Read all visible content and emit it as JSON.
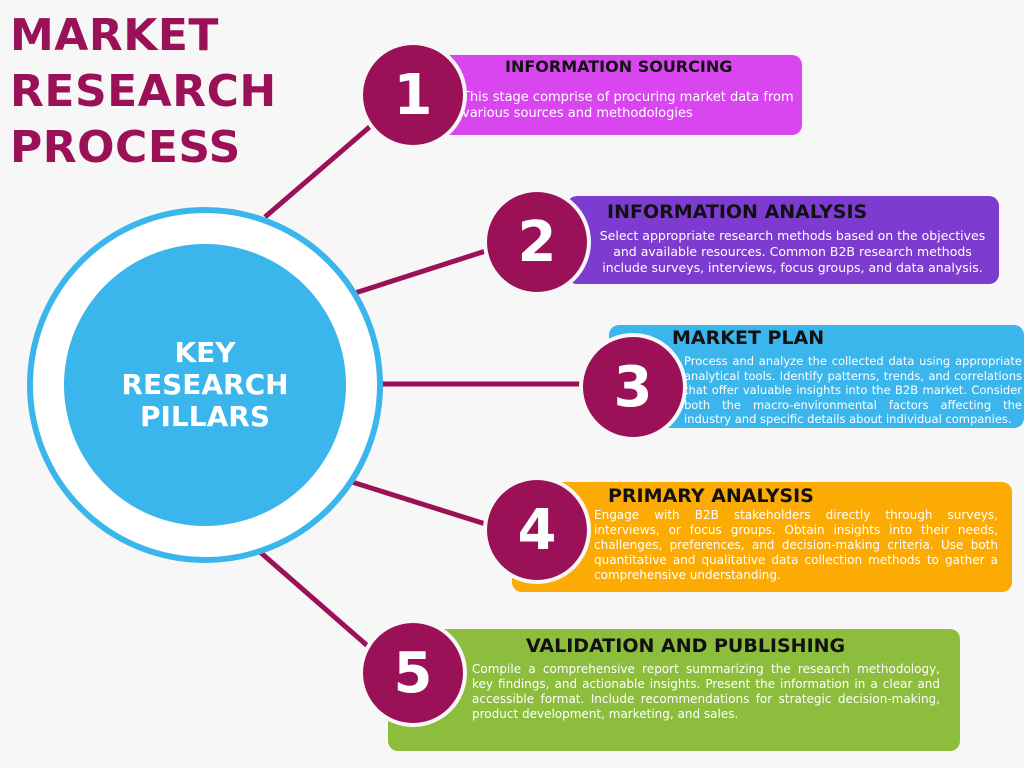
{
  "title": {
    "line1": "MARKET",
    "line2": "RESEARCH",
    "line3": "PROCESS"
  },
  "hub": {
    "line1": "KEY",
    "line2": "RESEARCH",
    "line3": "PILLARS"
  },
  "colors": {
    "title": "#9b1158",
    "hub": "#3bb6ec",
    "number_circle": "#9b1158",
    "connector": "#9b1158",
    "stage1": "#d946ef",
    "stage2": "#7d3ccf",
    "stage3": "#3bb6ec",
    "stage4": "#fbab03",
    "stage5": "#8cbd3c"
  },
  "stages": [
    {
      "number": "1",
      "heading": "INFORMATION SOURCING",
      "text": "This stage comprise of procuring market data from various sources and methodologies"
    },
    {
      "number": "2",
      "heading": "INFORMATION ANALYSIS",
      "text": "Select appropriate research methods based on the objectives and available resources. Common B2B research methods include surveys, interviews, focus groups, and data analysis."
    },
    {
      "number": "3",
      "heading": "MARKET PLAN",
      "text": "Process and analyze the collected data using appropriate analytical tools. Identify patterns, trends, and correlations that offer valuable insights into the B2B market. Consider both the macro-environmental factors affecting the industry and specific details about individual companies."
    },
    {
      "number": "4",
      "heading": "PRIMARY ANALYSIS",
      "text": "Engage with B2B stakeholders directly through surveys, interviews, or focus groups. Obtain insights into their needs, challenges, preferences, and decision-making criteria. Use both quantitative and qualitative data collection methods to gather a comprehensive understanding."
    },
    {
      "number": "5",
      "heading": "VALIDATION AND PUBLISHING",
      "text": "Compile a comprehensive report summarizing the research methodology, key findings, and actionable insights. Present the information in a clear and accessible format. Include recommendations for strategic decision-making, product development, marketing, and sales."
    }
  ]
}
